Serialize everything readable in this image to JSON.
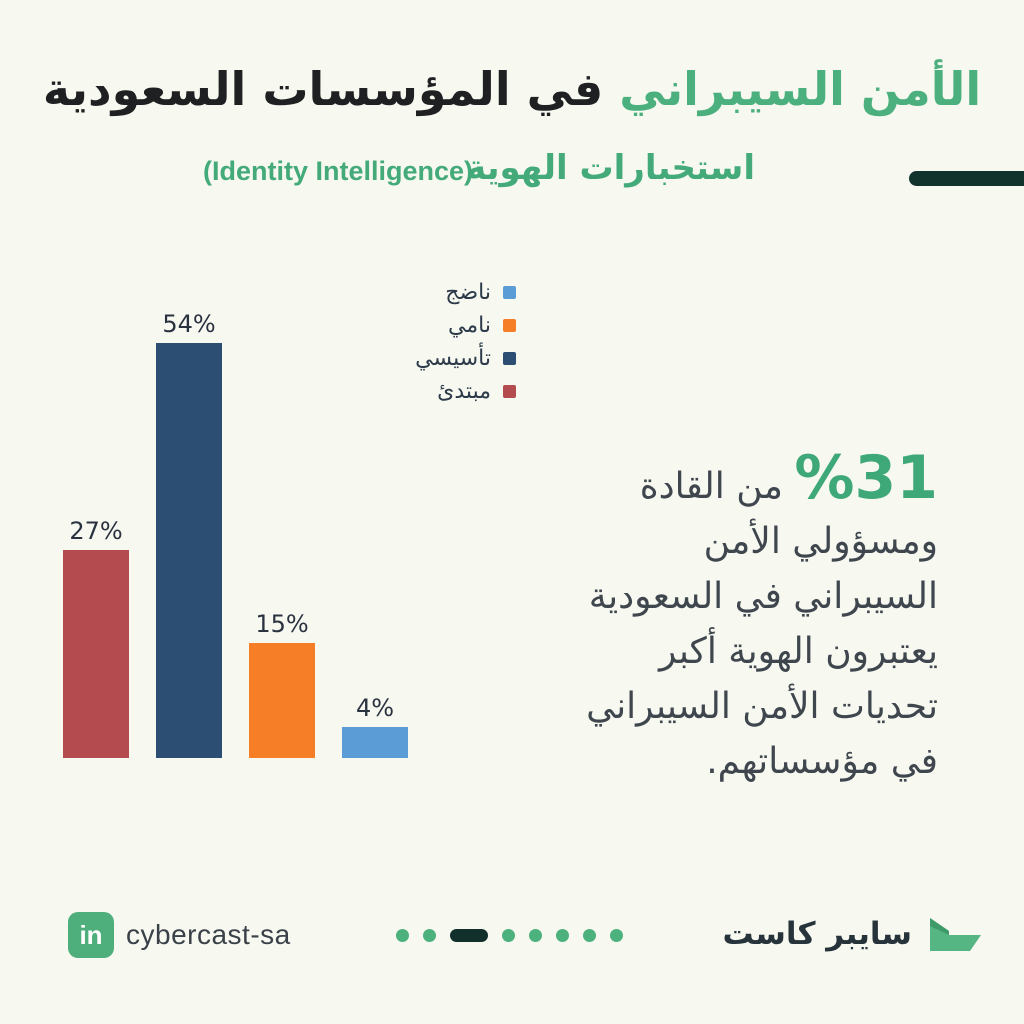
{
  "page": {
    "background": "#f7f9f1",
    "accent_green": "#4cb07e",
    "dark_text": "#1f2022",
    "dash_color": "#12332c"
  },
  "header": {
    "title_highlight": "الأمن السيبراني",
    "title_rest": "في المؤسسات السعودية",
    "subtitle_ar": "استخبارات الهوية",
    "subtitle_en": "(Identity Intelligence)"
  },
  "chart_data": {
    "type": "bar",
    "categories": [
      "مبتدئ",
      "تأسيسي",
      "نامي",
      "ناضج"
    ],
    "values": [
      27,
      54,
      15,
      4
    ],
    "value_labels": [
      "27%",
      "54%",
      "15%",
      "4%"
    ],
    "bar_colors": [
      "#b44b4e",
      "#2c4e72",
      "#f57e27",
      "#5b9cd6"
    ],
    "legend": [
      {
        "label": "ناضج",
        "color": "#5b9cd6"
      },
      {
        "label": "نامي",
        "color": "#f57e27"
      },
      {
        "label": "تأسيسي",
        "color": "#2c4e72"
      },
      {
        "label": "مبتدئ",
        "color": "#b44b4e"
      }
    ],
    "title": "",
    "xlabel": "",
    "ylabel": "",
    "ylim": [
      0,
      60
    ],
    "grid": false,
    "axes_visible": false,
    "legend_position": "top-right"
  },
  "stat": {
    "number": "%31",
    "text": "من القادة ومسؤولي الأمن السيبراني في السعودية يعتبرون الهوية أكبر تحديات الأمن السيبراني في مؤسساتهم."
  },
  "footer": {
    "linkedin_icon": "in",
    "handle": "cybercast-sa",
    "pagination": {
      "total": 8,
      "active_index": 2
    },
    "brand_name": "سايبر كاست",
    "brand_icon": "cybercast-logo-icon",
    "brand_icon_colors": [
      "#3e9b68",
      "#55b583"
    ]
  }
}
